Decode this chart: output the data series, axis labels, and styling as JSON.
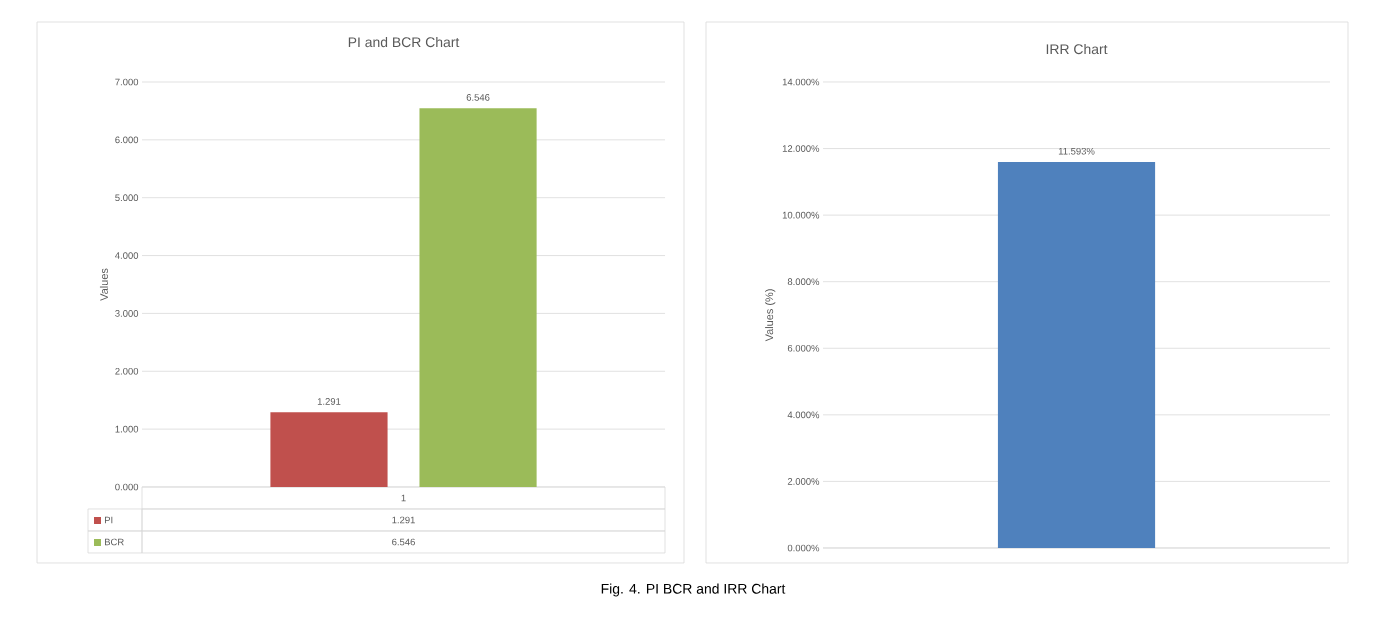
{
  "chart_data": [
    {
      "type": "bar",
      "title": "PI and BCR Chart",
      "ylabel": "Values",
      "categories": [
        "1"
      ],
      "series": [
        {
          "name": "PI",
          "color": "#c0504d",
          "values": [
            1.291
          ],
          "value_labels": [
            "1.291"
          ]
        },
        {
          "name": "BCR",
          "color": "#9bbb59",
          "values": [
            6.546
          ],
          "value_labels": [
            "6.546"
          ]
        }
      ],
      "ylim": [
        0,
        7
      ],
      "yticks": [
        {
          "value": 0,
          "label": "0.000"
        },
        {
          "value": 1,
          "label": "1.000"
        },
        {
          "value": 2,
          "label": "2.000"
        },
        {
          "value": 3,
          "label": "3.000"
        },
        {
          "value": 4,
          "label": "4.000"
        },
        {
          "value": 5,
          "label": "5.000"
        },
        {
          "value": 6,
          "label": "6.000"
        },
        {
          "value": 7,
          "label": "7.000"
        }
      ],
      "grid": "y",
      "legend": "bottom"
    },
    {
      "type": "bar",
      "title": "IRR Chart",
      "ylabel": "Values (%)",
      "categories": [
        null
      ],
      "values": [
        11.593
      ],
      "color": "#4f81bd",
      "value_labels": [
        "11.593%"
      ],
      "ylim": [
        0,
        14
      ],
      "yticks": [
        {
          "value": 0,
          "label": "0.000%"
        },
        {
          "value": 2,
          "label": "2.000%"
        },
        {
          "value": 4,
          "label": "4.000%"
        },
        {
          "value": 6,
          "label": "6.000%"
        },
        {
          "value": 8,
          "label": "8.000%"
        },
        {
          "value": 10,
          "label": "10.000%"
        },
        {
          "value": 12,
          "label": "12.000%"
        },
        {
          "value": 14,
          "label": "14.000%"
        }
      ],
      "grid": "y",
      "annotations": [
        "Fig. 4. PI BCR and IRR Chart"
      ]
    }
  ]
}
